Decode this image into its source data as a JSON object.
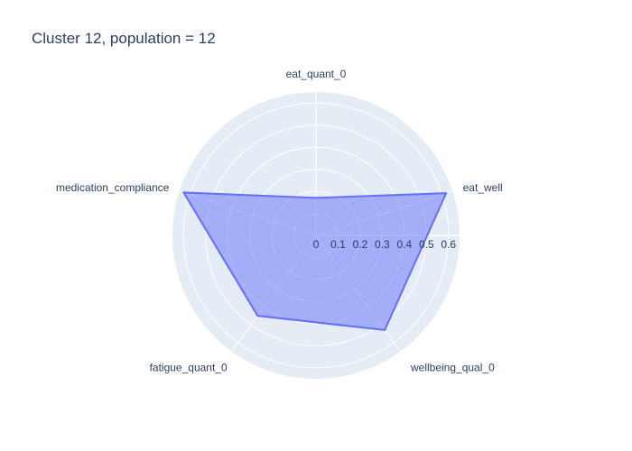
{
  "chart_data": {
    "type": "radar",
    "title": "Cluster 12, population = 12",
    "axes": [
      "eat_quant_0",
      "eat_well",
      "wellbeing_qual_0",
      "fatigue_quant_0",
      "medication_compliance"
    ],
    "series": [
      {
        "values": [
          0.17,
          0.62,
          0.53,
          0.45,
          0.63
        ]
      }
    ],
    "radial_range": [
      0,
      0.65
    ],
    "radial_ticks": [
      "0",
      "0.1",
      "0.2",
      "0.3",
      "0.4",
      "0.5",
      "0.6"
    ],
    "colors": {
      "fill": "#636efa",
      "line": "#636efa",
      "background": "#e5ecf6",
      "grid": "#ffffff",
      "text": "#2a3f5f"
    }
  }
}
